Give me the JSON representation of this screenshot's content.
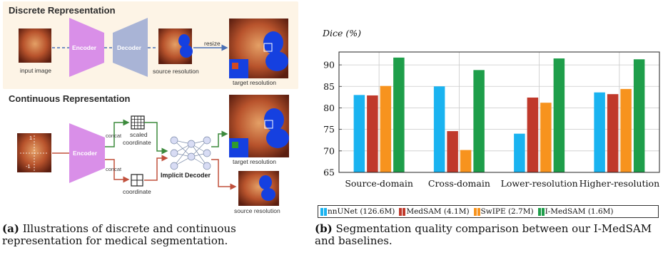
{
  "figure_a": {
    "discrete": {
      "title": "Discrete Representation",
      "encoder": "Encoder",
      "decoder": "Decoder",
      "resize": "resize",
      "input_label": "input image",
      "source_label": "source resolution",
      "target_label": "target resolution"
    },
    "continuous": {
      "title": "Continuous Representation",
      "encoder": "Encoder",
      "concat_top": "concat",
      "concat_bottom": "concat",
      "scaled_coordinate_1": "scaled",
      "scaled_coordinate_2": "coordinate",
      "coordinate": "coordinate",
      "implicit_decoder": "Implicit Decoder",
      "input_label": "input image",
      "target_label": "target resolution",
      "source_label": "source resolution",
      "axis_pos": "1",
      "axis_neg": "-1"
    },
    "caption_label": "(a)",
    "caption_text": "Illustrations of discrete and continuous representation for medical segmentation."
  },
  "figure_b": {
    "caption_label": "(b)",
    "caption_text": "Segmentation quality comparison between our I-MedSAM and baselines."
  },
  "chart_data": {
    "type": "bar",
    "ylabel": "Dice (%)",
    "ylim": [
      65,
      93
    ],
    "yticks": [
      65,
      70,
      75,
      80,
      85,
      90
    ],
    "grid": true,
    "legend_position": "bottom",
    "categories": [
      "Source-domain",
      "Cross-domain",
      "Lower-resolution",
      "Higher-resolution"
    ],
    "series": [
      {
        "name": "nnUNet (126.6M)",
        "color": "#1ab3f0",
        "values": [
          83.0,
          85.0,
          74.0,
          83.6
        ]
      },
      {
        "name": "MedSAM (4.1M)",
        "color": "#c0392b",
        "values": [
          82.9,
          74.6,
          82.4,
          83.2
        ]
      },
      {
        "name": "SwIPE (2.7M)",
        "color": "#f7931e",
        "values": [
          85.1,
          70.2,
          81.2,
          84.4
        ]
      },
      {
        "name": "I-MedSAM (1.6M)",
        "color": "#1e9e4a",
        "values": [
          91.7,
          88.8,
          91.5,
          91.3
        ]
      }
    ]
  }
}
